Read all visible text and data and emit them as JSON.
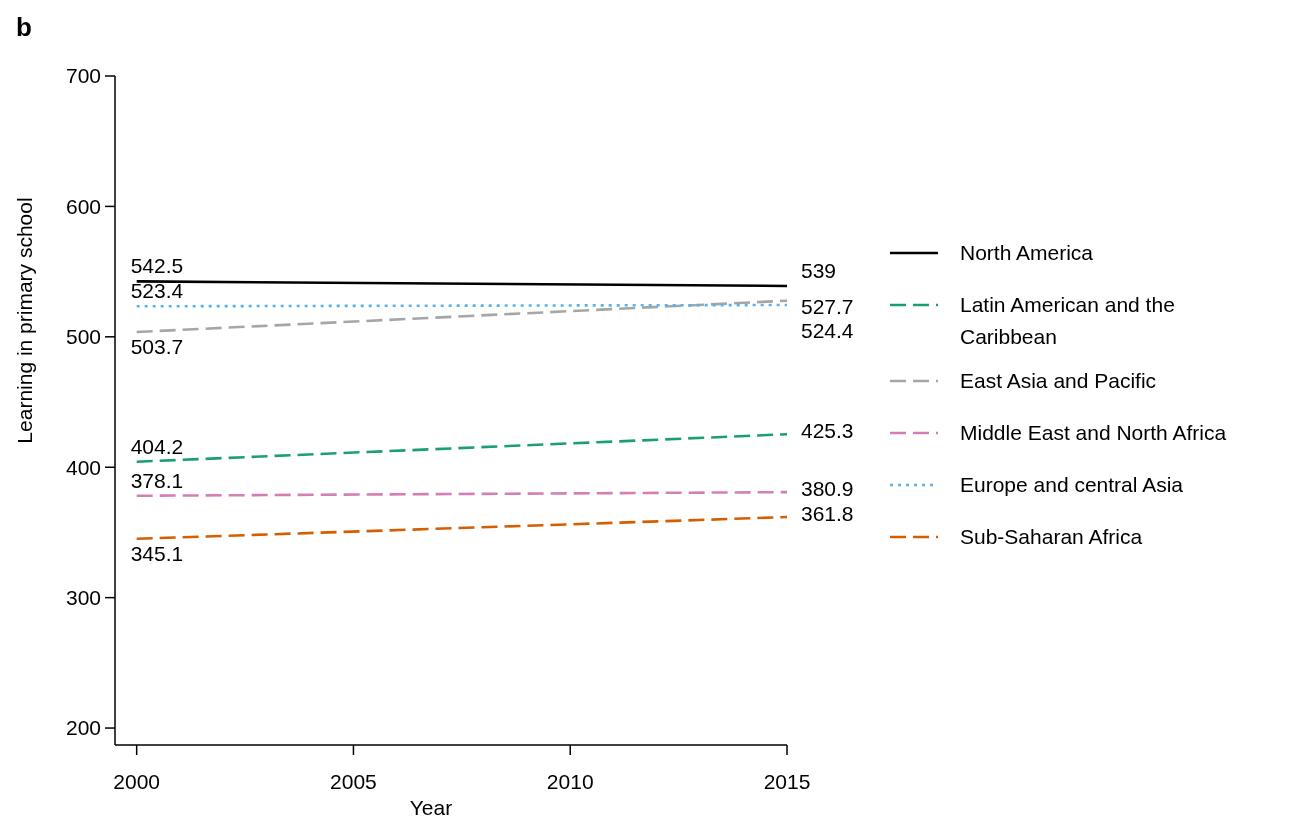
{
  "chart_data": {
    "type": "line",
    "title": "b",
    "xlabel": "Year",
    "ylabel": "Learning in primary school",
    "x": [
      2000,
      2015
    ],
    "xlim": [
      1999.5,
      2015
    ],
    "xticks": [
      2000,
      2005,
      2010,
      2015
    ],
    "ylim": [
      187,
      700
    ],
    "yticks": [
      200,
      300,
      400,
      500,
      600,
      700
    ],
    "series": [
      {
        "name": "North America",
        "color": "#000000",
        "values": [
          542.5,
          539
        ],
        "line_style": "solid"
      },
      {
        "name": "Latin American and the Caribbean",
        "color": "#1b9e77",
        "values": [
          404.2,
          425.3
        ],
        "line_style": "dashed"
      },
      {
        "name": "East Asia and Pacific",
        "color": "#a6a6a6",
        "values": [
          503.7,
          527.7
        ],
        "line_style": "dashed"
      },
      {
        "name": "Middle East and North Africa",
        "color": "#d47fb4",
        "values": [
          378.1,
          380.9
        ],
        "line_style": "dashed"
      },
      {
        "name": "Europe and central Asia",
        "color": "#56b4e9",
        "values": [
          523.4,
          524.4
        ],
        "line_style": "dotted"
      },
      {
        "name": "Sub-Saharan Africa",
        "color": "#d55e00",
        "values": [
          345.1,
          361.8
        ],
        "line_style": "dashed"
      }
    ],
    "data_labels": true,
    "legend": "right",
    "grid": false,
    "marker": "none"
  }
}
